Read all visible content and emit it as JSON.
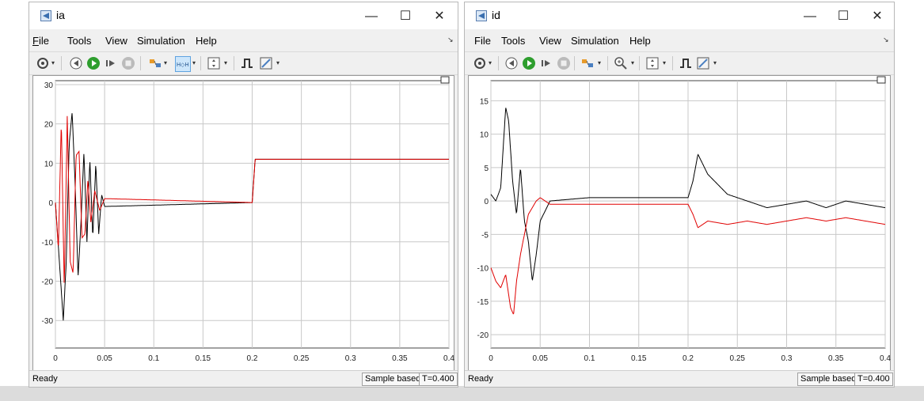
{
  "windows": [
    {
      "title": "ia",
      "menu": [
        "File",
        "Tools",
        "View",
        "Simulation",
        "Help"
      ],
      "status": {
        "ready": "Ready",
        "mode": "Sample based",
        "time": "T=0.400"
      },
      "chart_data": {
        "type": "line",
        "xlim": [
          0,
          0.4
        ],
        "ylim": [
          -37,
          31
        ],
        "xticks": [
          0,
          0.05,
          0.1,
          0.15,
          0.2,
          0.25,
          0.3,
          0.35,
          0.4
        ],
        "xtick_labels": [
          "0",
          "0.05",
          "0.1",
          "0.15",
          "0.2",
          "0.25",
          "0.3",
          "0.35",
          "0.4"
        ],
        "yticks": [
          -30,
          -20,
          -10,
          0,
          10,
          20,
          30
        ],
        "ytick_labels": [
          "-30",
          "-20",
          "-10",
          "0",
          "10",
          "20",
          "30"
        ],
        "grid": true,
        "series": [
          {
            "color": "#000000",
            "x": [
              0,
              0.004,
              0.008,
              0.011,
              0.014,
              0.017,
              0.02,
              0.023,
              0.026,
              0.029,
              0.032,
              0.035,
              0.038,
              0.041,
              0.044,
              0.047,
              0.05,
              0.2,
              0.203,
              0.4
            ],
            "y": [
              0,
              -15,
              -30,
              -15,
              15,
              23,
              5,
              -19,
              -5,
              13,
              -10,
              11,
              -9,
              10,
              -8,
              2,
              -1,
              0,
              11,
              11
            ]
          },
          {
            "color": "#e00000",
            "x": [
              0,
              0.003,
              0.006,
              0.009,
              0.012,
              0.015,
              0.018,
              0.021,
              0.024,
              0.027,
              0.03,
              0.033,
              0.036,
              0.04,
              0.045,
              0.05,
              0.2,
              0.203,
              0.4
            ],
            "y": [
              0,
              -12,
              21,
              -22,
              22,
              -15,
              -18,
              12,
              13,
              -9,
              -8,
              6,
              -5,
              3,
              -2,
              1,
              0,
              11,
              11
            ]
          }
        ]
      }
    },
    {
      "title": "id",
      "menu": [
        "File",
        "Tools",
        "View",
        "Simulation",
        "Help"
      ],
      "status": {
        "ready": "Ready",
        "mode": "Sample based",
        "time": "T=0.400"
      },
      "chart_data": {
        "type": "line",
        "xlim": [
          0,
          0.4
        ],
        "ylim": [
          -22,
          18
        ],
        "xticks": [
          0,
          0.05,
          0.1,
          0.15,
          0.2,
          0.25,
          0.3,
          0.35,
          0.4
        ],
        "xtick_labels": [
          "0",
          "0.05",
          "0.1",
          "0.15",
          "0.2",
          "0.25",
          "0.3",
          "0.35",
          "0.4"
        ],
        "yticks": [
          -20,
          -15,
          -10,
          -5,
          0,
          5,
          10,
          15
        ],
        "ytick_labels": [
          "-20",
          "-15",
          "-10",
          "-5",
          "0",
          "5",
          "10",
          "15"
        ],
        "grid": true,
        "series": [
          {
            "color": "#000000",
            "x": [
              0,
              0.005,
              0.01,
              0.015,
              0.018,
              0.022,
              0.026,
              0.03,
              0.034,
              0.038,
              0.042,
              0.046,
              0.05,
              0.06,
              0.1,
              0.15,
              0.2,
              0.205,
              0.21,
              0.22,
              0.24,
              0.26,
              0.28,
              0.3,
              0.32,
              0.34,
              0.36,
              0.38,
              0.4
            ],
            "y": [
              1,
              0,
              2,
              14,
              12,
              3,
              -2,
              5,
              -3,
              -6,
              -12,
              -8,
              -3,
              0,
              0.5,
              0.5,
              0.5,
              3,
              7,
              4,
              1,
              0,
              -1,
              -0.5,
              0,
              -1,
              0,
              -0.5,
              -1
            ]
          },
          {
            "color": "#e00000",
            "x": [
              0,
              0.005,
              0.01,
              0.015,
              0.02,
              0.023,
              0.026,
              0.03,
              0.034,
              0.038,
              0.042,
              0.046,
              0.05,
              0.06,
              0.1,
              0.15,
              0.2,
              0.205,
              0.21,
              0.22,
              0.24,
              0.26,
              0.28,
              0.3,
              0.32,
              0.34,
              0.36,
              0.38,
              0.4
            ],
            "y": [
              -10,
              -12,
              -13,
              -11,
              -16,
              -17,
              -12,
              -8,
              -5,
              -2,
              -1,
              0,
              0.5,
              -0.5,
              -0.5,
              -0.5,
              -0.5,
              -2,
              -4,
              -3,
              -3.5,
              -3,
              -3.5,
              -3,
              -2.5,
              -3,
              -2.5,
              -3,
              -3.5
            ]
          }
        ]
      }
    }
  ]
}
